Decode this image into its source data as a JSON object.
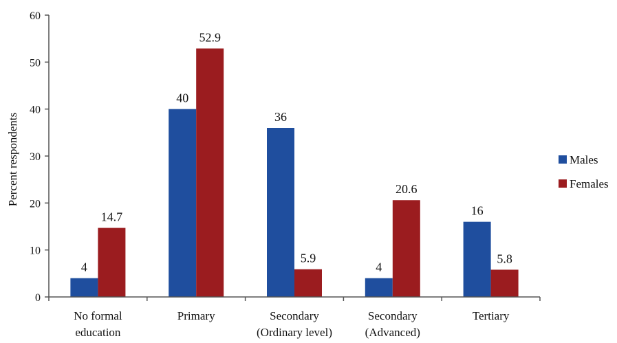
{
  "chart_data": {
    "type": "bar",
    "title": "",
    "ylabel": "Percent respondents",
    "xlabel": "",
    "ylim": [
      0,
      60
    ],
    "yticks": [
      0,
      10,
      20,
      30,
      40,
      50,
      60
    ],
    "grid": false,
    "legend_position": "right",
    "categories": [
      [
        "No formal",
        "education"
      ],
      [
        "Primary"
      ],
      [
        "Secondary",
        "(Ordinary level)"
      ],
      [
        "Secondary",
        "(Advanced)"
      ],
      [
        "Tertiary"
      ]
    ],
    "series": [
      {
        "name": "Males",
        "color": "#1f4e9e",
        "values": [
          4,
          40,
          36,
          4,
          16
        ],
        "labels": [
          "4",
          "40",
          "36",
          "4",
          "16"
        ]
      },
      {
        "name": "Females",
        "color": "#9b1c1f",
        "values": [
          14.7,
          52.9,
          5.9,
          20.6,
          5.8
        ],
        "labels": [
          "14.7",
          "52.9",
          "5.9",
          "20.6",
          "5.8"
        ]
      }
    ]
  }
}
